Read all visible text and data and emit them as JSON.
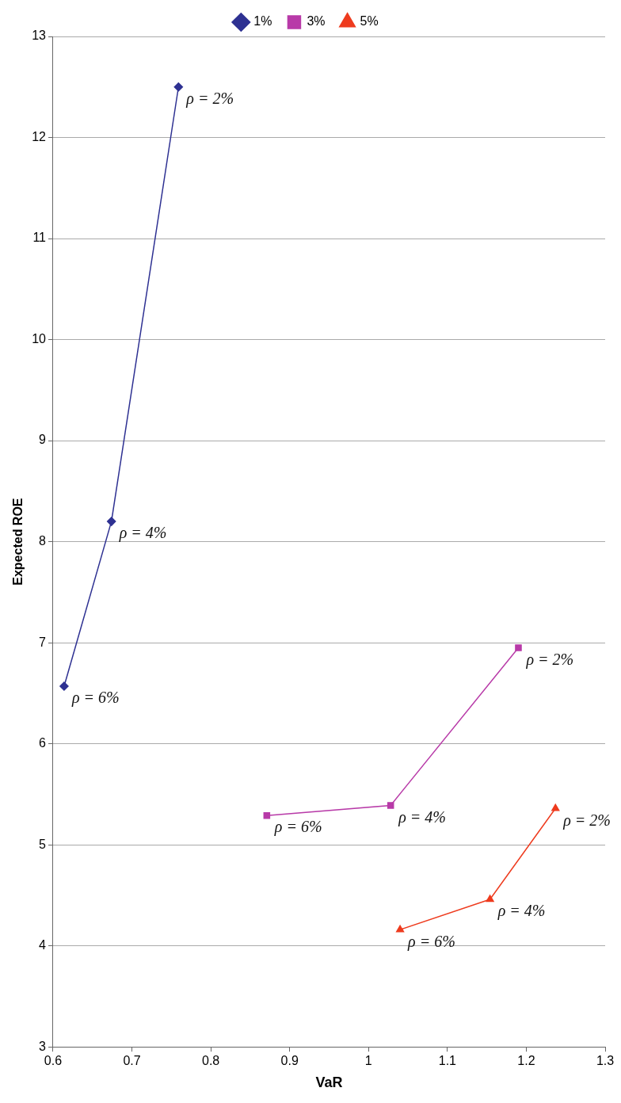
{
  "chart_data": {
    "type": "line",
    "xlabel": "VaR",
    "ylabel": "Expected ROE",
    "xlim": [
      0.6,
      1.3
    ],
    "xticks": [
      0.6,
      0.7,
      0.8,
      0.9,
      1,
      1.1,
      1.2,
      1.3
    ],
    "ylim": [
      3,
      13
    ],
    "yticks": [
      3,
      4,
      5,
      6,
      7,
      8,
      9,
      10,
      11,
      12,
      13
    ],
    "grid": "y",
    "legend": "top",
    "line_style": "solid",
    "series": [
      {
        "name": "1%",
        "color": "#2e3192",
        "marker": "diamond",
        "x": [
          0.759,
          0.674,
          0.614
        ],
        "values": [
          12.5,
          8.2,
          6.57
        ]
      },
      {
        "name": "3%",
        "color": "#b83aa8",
        "marker": "square",
        "x": [
          1.19,
          1.028,
          0.871
        ],
        "values": [
          6.95,
          5.39,
          5.29
        ]
      },
      {
        "name": "5%",
        "color": "#ee3b1e",
        "marker": "triangle",
        "x": [
          1.237,
          1.154,
          1.04
        ],
        "values": [
          5.36,
          4.46,
          4.16
        ]
      }
    ],
    "annotations": [
      {
        "text": "ρ = 2%",
        "x": 0.759,
        "y": 12.5
      },
      {
        "text": "ρ = 4%",
        "x": 0.674,
        "y": 8.2
      },
      {
        "text": "ρ = 6%",
        "x": 0.614,
        "y": 6.57
      },
      {
        "text": "ρ = 2%",
        "x": 1.19,
        "y": 6.95
      },
      {
        "text": "ρ = 4%",
        "x": 1.028,
        "y": 5.39
      },
      {
        "text": "ρ = 6%",
        "x": 0.871,
        "y": 5.29
      },
      {
        "text": "ρ = 2%",
        "x": 1.237,
        "y": 5.36
      },
      {
        "text": "ρ = 4%",
        "x": 1.154,
        "y": 4.46
      },
      {
        "text": "ρ = 6%",
        "x": 1.04,
        "y": 4.16
      }
    ]
  }
}
